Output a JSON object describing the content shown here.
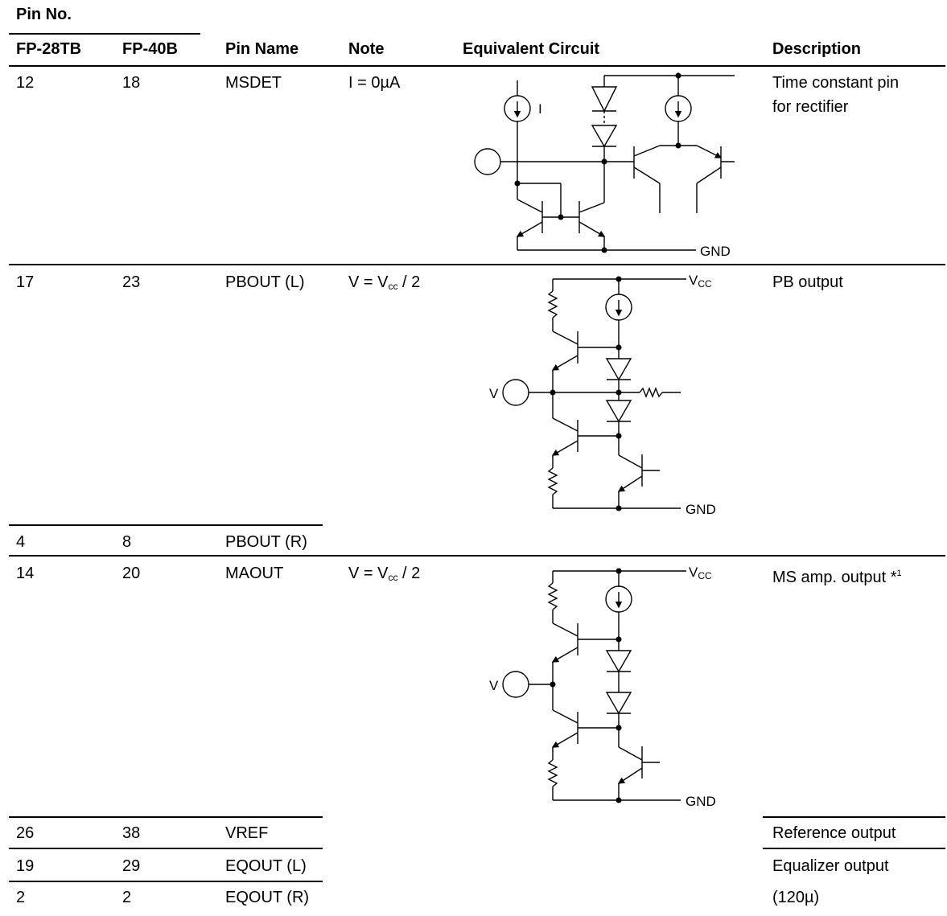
{
  "header": {
    "pin_no": "Pin No.",
    "fp28": "FP-28TB",
    "fp40": "FP-40B",
    "pin_name": "Pin Name",
    "note": "Note",
    "circuit": "Equivalent Circuit",
    "description": "Description"
  },
  "rows": [
    {
      "fp28": "12",
      "fp40": "18",
      "name": "MSDET",
      "note": "I = 0µA",
      "desc1": "Time constant pin",
      "desc2": "for rectifier"
    },
    {
      "fp28": "17",
      "fp40": "23",
      "name": "PBOUT (L)",
      "note_pre": "V = V",
      "note_sub": "cc",
      "note_post": " / 2",
      "desc1": "PB output"
    },
    {
      "fp28": "4",
      "fp40": "8",
      "name": "PBOUT (R)"
    },
    {
      "fp28": "14",
      "fp40": "20",
      "name": "MAOUT",
      "note_pre": "V = V",
      "note_sub": "cc",
      "note_post": " / 2",
      "desc1": "MS amp. output *",
      "desc1_sup": "1"
    },
    {
      "fp28": "26",
      "fp40": "38",
      "name": "VREF",
      "desc1": "Reference output"
    },
    {
      "fp28": "19",
      "fp40": "29",
      "name": "EQOUT (L)",
      "desc1": "Equalizer output"
    },
    {
      "fp28": "2",
      "fp40": "2",
      "name": "EQOUT (R)",
      "desc1": "(120µ)"
    }
  ],
  "circuit_labels": {
    "current_source": "I",
    "gnd": "GND",
    "vcc_main": "V",
    "vcc_sub": "CC",
    "input_v": "V"
  }
}
